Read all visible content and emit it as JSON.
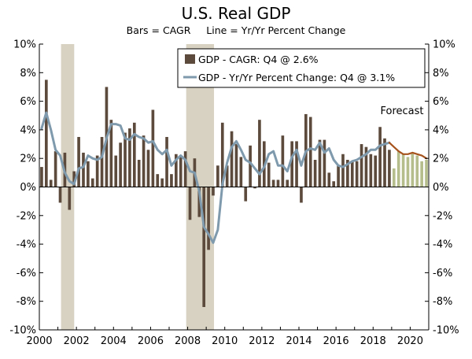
{
  "chart_data": {
    "type": "bar+line",
    "title": "U.S. Real GDP",
    "subtitle": "Bars = CAGR     Line = Yr/Yr Percent Change",
    "annotation": "Forecast",
    "xlim": [
      2000,
      2021.0
    ],
    "ylim": [
      -10,
      10
    ],
    "x_tick_labels": [
      "2000",
      "2002",
      "2004",
      "2006",
      "2008",
      "2010",
      "2012",
      "2014",
      "2016",
      "2018",
      "2020"
    ],
    "y_tick_labels_left": [
      "10%",
      "8%",
      "6%",
      "4%",
      "2%",
      "0%",
      "-2%",
      "-4%",
      "-6%",
      "-8%",
      "-10%"
    ],
    "y_tick_labels_right": [
      "10%",
      "8%",
      "6%",
      "4%",
      "2%",
      "0%",
      "-2%",
      "-4%",
      "-6%",
      "-8%",
      "-10%"
    ],
    "legend": {
      "position": "top-center",
      "bar_label": "GDP - CAGR: Q4 @ 2.6%",
      "line_label": "GDP - Yr/Yr Percent Change: Q4 @ 3.1%"
    },
    "recessions": [
      [
        2001.17,
        2001.88
      ],
      [
        2007.92,
        2009.42
      ]
    ],
    "forecast_start_quarter": "2019Q1",
    "quarters": [
      "2000Q1",
      "2000Q2",
      "2000Q3",
      "2000Q4",
      "2001Q1",
      "2001Q2",
      "2001Q3",
      "2001Q4",
      "2002Q1",
      "2002Q2",
      "2002Q3",
      "2002Q4",
      "2003Q1",
      "2003Q2",
      "2003Q3",
      "2003Q4",
      "2004Q1",
      "2004Q2",
      "2004Q3",
      "2004Q4",
      "2005Q1",
      "2005Q2",
      "2005Q3",
      "2005Q4",
      "2006Q1",
      "2006Q2",
      "2006Q3",
      "2006Q4",
      "2007Q1",
      "2007Q2",
      "2007Q3",
      "2007Q4",
      "2008Q1",
      "2008Q2",
      "2008Q3",
      "2008Q4",
      "2009Q1",
      "2009Q2",
      "2009Q3",
      "2009Q4",
      "2010Q1",
      "2010Q2",
      "2010Q3",
      "2010Q4",
      "2011Q1",
      "2011Q2",
      "2011Q3",
      "2011Q4",
      "2012Q1",
      "2012Q2",
      "2012Q3",
      "2012Q4",
      "2013Q1",
      "2013Q2",
      "2013Q3",
      "2013Q4",
      "2014Q1",
      "2014Q2",
      "2014Q3",
      "2014Q4",
      "2015Q1",
      "2015Q2",
      "2015Q3",
      "2015Q4",
      "2016Q1",
      "2016Q2",
      "2016Q3",
      "2016Q4",
      "2017Q1",
      "2017Q2",
      "2017Q3",
      "2017Q4",
      "2018Q1",
      "2018Q2",
      "2018Q3",
      "2018Q4",
      "2019Q1",
      "2019Q2",
      "2019Q3",
      "2019Q4",
      "2020Q1",
      "2020Q2",
      "2020Q3",
      "2020Q4"
    ],
    "cagr": [
      1.4,
      7.5,
      0.5,
      2.5,
      -1.1,
      2.4,
      -1.6,
      1.1,
      3.5,
      2.4,
      1.8,
      0.6,
      2.2,
      3.5,
      7.0,
      4.7,
      2.2,
      3.1,
      3.8,
      4.1,
      4.5,
      1.9,
      3.6,
      2.6,
      5.4,
      0.9,
      0.6,
      3.5,
      0.9,
      2.3,
      2.2,
      2.5,
      -2.3,
      2.0,
      -2.1,
      -8.4,
      -4.4,
      -0.6,
      1.5,
      4.5,
      1.5,
      3.9,
      3.0,
      2.1,
      -1.0,
      2.9,
      -0.1,
      4.7,
      3.2,
      1.7,
      0.5,
      0.5,
      3.6,
      0.5,
      3.2,
      3.2,
      -1.1,
      5.1,
      4.9,
      1.9,
      3.3,
      3.3,
      1.0,
      0.4,
      1.5,
      2.3,
      1.9,
      1.8,
      1.8,
      3.0,
      2.8,
      2.3,
      2.2,
      4.2,
      3.4,
      2.6,
      1.3,
      2.5,
      2.3,
      2.1,
      2.4,
      2.2,
      1.8,
      1.9
    ],
    "yoy": [
      4.1,
      5.2,
      4.0,
      2.6,
      2.2,
      1.0,
      0.4,
      0.2,
      1.3,
      1.4,
      2.2,
      2.0,
      1.9,
      2.1,
      3.4,
      4.4,
      4.4,
      4.3,
      3.4,
      3.3,
      3.7,
      3.5,
      3.4,
      3.1,
      3.2,
      2.6,
      2.3,
      2.6,
      1.5,
      1.9,
      2.2,
      1.9,
      1.1,
      1.0,
      -0.3,
      -2.8,
      -3.3,
      -3.9,
      -3.0,
      0.2,
      1.7,
      2.8,
      3.2,
      2.6,
      1.9,
      1.7,
      1.3,
      0.9,
      1.4,
      2.3,
      2.5,
      1.5,
      1.5,
      1.1,
      2.1,
      2.6,
      1.5,
      2.5,
      2.7,
      2.6,
      3.1,
      2.4,
      2.7,
      1.9,
      1.5,
      1.4,
      1.6,
      1.8,
      1.9,
      2.1,
      2.3,
      2.6,
      2.6,
      2.9,
      3.0,
      3.1,
      2.8,
      2.5,
      2.3,
      2.3,
      2.4,
      2.3,
      2.2,
      2.0
    ]
  },
  "colors": {
    "bar_actual": "#5c4a3c",
    "bar_forecast": "#b6bd8c",
    "line_actual": "#7f9aad",
    "line_forecast": "#a6531d",
    "recession": "#d8d2c2",
    "axis": "#000000"
  }
}
